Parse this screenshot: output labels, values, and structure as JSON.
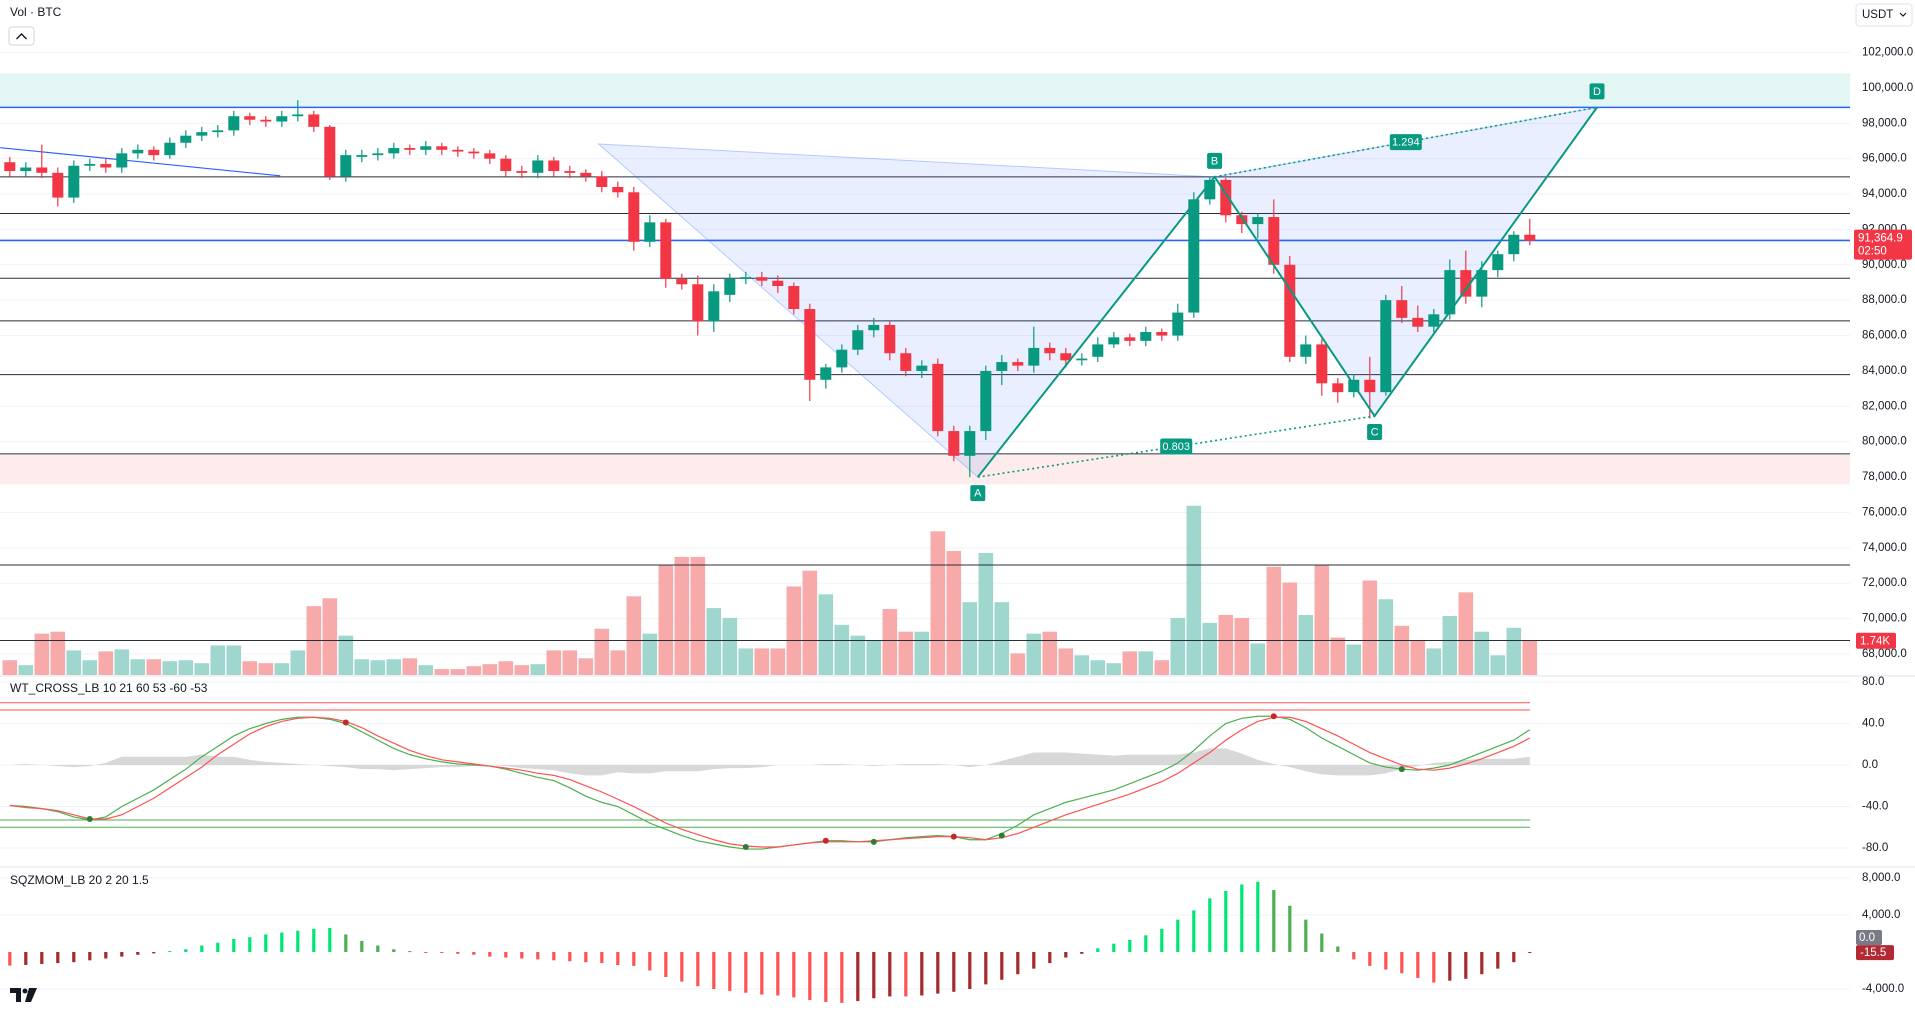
{
  "chart_data": [
    {
      "type": "candlestick",
      "title": "Vol · BTC",
      "currency": "USDT",
      "open": [
        95800,
        95300,
        95500,
        95200,
        93800,
        95600,
        95700,
        95500,
        96300,
        96500,
        96200,
        96900,
        97300,
        97500,
        97600,
        98400,
        98200,
        98100,
        98400,
        98500,
        97800,
        95000,
        96100,
        96200,
        96300,
        96600,
        96500,
        96700,
        96500,
        96400,
        96300,
        96000,
        95300,
        95200,
        95900,
        95300,
        95200,
        95000,
        94400,
        94100,
        91300,
        92400,
        89200,
        88900,
        86800,
        88300,
        89200,
        89300,
        89100,
        88800,
        87500,
        83500,
        84200,
        85200,
        86300,
        86600,
        85000,
        84000,
        84400,
        80600,
        79200,
        80600,
        84000,
        84500,
        84300,
        85300,
        85000,
        84600,
        84800,
        85500,
        85900,
        85700,
        86200,
        86000,
        87300,
        93700,
        94800,
        92800,
        92300,
        92700,
        90000,
        84800,
        85500,
        83300,
        82800,
        83500,
        82800,
        88000,
        87000,
        86500,
        87200,
        89700,
        88200,
        89700,
        90600,
        91700
      ],
      "high": [
        96100,
        95800,
        96800,
        95500,
        95900,
        96000,
        96000,
        96600,
        96800,
        96700,
        97200,
        97600,
        97800,
        97900,
        98700,
        98600,
        98400,
        98700,
        99300,
        98700,
        97900,
        96500,
        96500,
        96600,
        96900,
        96800,
        97000,
        96900,
        96700,
        96600,
        96500,
        96200,
        95600,
        96200,
        96100,
        95600,
        95400,
        95300,
        94700,
        94400,
        92800,
        92600,
        89500,
        89400,
        88900,
        89500,
        89600,
        89600,
        89400,
        89000,
        87800,
        84400,
        85500,
        86600,
        87000,
        86800,
        85300,
        84600,
        84700,
        80900,
        80900,
        84300,
        84900,
        84700,
        86500,
        85600,
        85300,
        85000,
        85900,
        86200,
        86100,
        86500,
        86400,
        87800,
        94100,
        95000,
        94900,
        93000,
        92900,
        93700,
        90500,
        86000,
        85800,
        83600,
        83800,
        84800,
        88300,
        88800,
        87700,
        87500,
        90300,
        90800,
        90200,
        90800,
        91900,
        92600
      ],
      "low": [
        95000,
        95000,
        94900,
        93300,
        93500,
        95300,
        95200,
        95200,
        96000,
        95900,
        96000,
        96600,
        97000,
        97200,
        97300,
        97900,
        97800,
        97800,
        98100,
        97500,
        94800,
        94700,
        95800,
        95900,
        96000,
        96200,
        96200,
        96200,
        96100,
        96000,
        95700,
        95000,
        94900,
        94900,
        95000,
        94900,
        94700,
        94100,
        93800,
        90800,
        91000,
        88700,
        88600,
        86000,
        86200,
        87900,
        88900,
        88800,
        88400,
        87200,
        82300,
        83000,
        83900,
        84900,
        85900,
        84600,
        83700,
        83600,
        80300,
        78900,
        78000,
        80100,
        83200,
        84000,
        83900,
        84600,
        84200,
        84300,
        84500,
        85300,
        85400,
        85400,
        85700,
        85700,
        87000,
        93400,
        92400,
        91800,
        91500,
        89500,
        84500,
        84400,
        82600,
        82200,
        82500,
        81300,
        82600,
        86700,
        86200,
        86200,
        86900,
        87800,
        87600,
        89300,
        90200,
        91100
      ],
      "close": [
        95300,
        95500,
        95200,
        93800,
        95600,
        95700,
        95500,
        96300,
        96500,
        96200,
        96900,
        97300,
        97500,
        97600,
        98400,
        98200,
        98100,
        98400,
        98500,
        97800,
        95000,
        96200,
        96200,
        96300,
        96600,
        96500,
        96700,
        96500,
        96400,
        96300,
        96000,
        95300,
        95200,
        95900,
        95300,
        95200,
        95000,
        94400,
        94100,
        91300,
        92400,
        89200,
        88900,
        86800,
        88500,
        89200,
        89300,
        89100,
        88800,
        87500,
        83500,
        84200,
        85200,
        86300,
        86600,
        85000,
        84000,
        84300,
        80600,
        79200,
        80600,
        84000,
        84500,
        84300,
        85300,
        85000,
        84600,
        84700,
        85500,
        85900,
        85700,
        86200,
        86000,
        87300,
        93700,
        94800,
        92800,
        92300,
        92700,
        90000,
        84800,
        85500,
        83300,
        82800,
        83500,
        82800,
        88000,
        87000,
        86500,
        87200,
        89700,
        88200,
        89700,
        90600,
        91700,
        91364.9
      ],
      "volume": [
        750,
        500,
        2100,
        2200,
        1250,
        750,
        1200,
        1300,
        800,
        800,
        700,
        750,
        600,
        1500,
        1500,
        700,
        600,
        600,
        1250,
        3500,
        3900,
        2000,
        800,
        750,
        800,
        850,
        500,
        300,
        300,
        450,
        550,
        700,
        500,
        550,
        1250,
        1250,
        850,
        2350,
        1250,
        4000,
        2100,
        5600,
        6000,
        6000,
        3400,
        2900,
        1350,
        1350,
        1350,
        4500,
        5300,
        4100,
        2550,
        2000,
        1750,
        3350,
        2200,
        2200,
        7300,
        6300,
        3700,
        6200,
        3700,
        1100,
        2100,
        2200,
        1350,
        1000,
        750,
        600,
        1200,
        1200,
        750,
        2900,
        8600,
        2650,
        3050,
        2900,
        1600,
        5500,
        4700,
        3050,
        5600,
        1900,
        1550,
        4800,
        3850,
        2500,
        1750,
        1350,
        3000,
        4200,
        2200,
        1000,
        2400,
        1740
      ],
      "colors": {
        "up": "#089981",
        "down": "#f23645",
        "volume_up": "#9fd6ce",
        "volume_down": "#f7aaa9"
      },
      "ylim": [
        66810,
        104970
      ],
      "volume_ylim": [
        0,
        34300
      ],
      "grid": true,
      "yticks": [
        {
          "value": 102000,
          "label": "102,000.0"
        },
        {
          "value": 100000,
          "label": "100,000.0"
        },
        {
          "value": 98000,
          "label": "98,000.0"
        },
        {
          "value": 96000,
          "label": "96,000.0"
        },
        {
          "value": 94000,
          "label": "94,000.0"
        },
        {
          "value": 92000,
          "label": "92,000.0"
        },
        {
          "value": 90000,
          "label": "90,000.0"
        },
        {
          "value": 88000,
          "label": "88,000.0"
        },
        {
          "value": 86000,
          "label": "86,000.0"
        },
        {
          "value": 84000,
          "label": "84,000.0"
        },
        {
          "value": 82000,
          "label": "82,000.0"
        },
        {
          "value": 80000,
          "label": "80,000.0"
        },
        {
          "value": 78000,
          "label": "78,000.0"
        },
        {
          "value": 76000,
          "label": "76,000.0"
        },
        {
          "value": 74000,
          "label": "74,000.0"
        },
        {
          "value": 72000,
          "label": "72,000.0"
        },
        {
          "value": 70000,
          "label": "70,000.0"
        },
        {
          "value": 68000,
          "label": "68,000.0"
        }
      ],
      "levels": [
        {
          "value": 98900,
          "color": "#2962ff"
        },
        {
          "value": 94970,
          "color": "#2a2e39"
        },
        {
          "value": 92900,
          "color": "#2a2e39"
        },
        {
          "value": 91380,
          "color": "#2962ff"
        },
        {
          "value": 89240,
          "color": "#2a2e39"
        },
        {
          "value": 86830,
          "color": "#2a2e39"
        },
        {
          "value": 83790,
          "color": "#2a2e39"
        },
        {
          "value": 79310,
          "color": "#2a2e39"
        },
        {
          "value": 73030,
          "color": "#2a2e39"
        },
        {
          "value": 68760,
          "color": "#2a2e39"
        }
      ],
      "zones": [
        {
          "from": 98900,
          "to": 100830,
          "color": "#e4f6f3"
        },
        {
          "from": 77590,
          "to": 79240,
          "color": "#fdeceb"
        }
      ],
      "trendline": {
        "x": [
          -0.6,
          16.9
        ],
        "y": [
          96620,
          95030
        ],
        "color": "#2962ff"
      },
      "pattern": {
        "points": [
          {
            "x": 36.8,
            "y": 96830
          },
          {
            "x": 60.5,
            "y": 78000,
            "label": "A"
          },
          {
            "x": 75.3,
            "y": 94970,
            "label": "B"
          },
          {
            "x": 85.3,
            "y": 81450,
            "label": "C"
          },
          {
            "x": 99.2,
            "y": 98900,
            "label": "D"
          }
        ],
        "ratio_ac": 0.803,
        "ratio_bd": 1.294,
        "color": "#089981",
        "fill": "#2962ff"
      },
      "last_price": {
        "value": 91364.9,
        "label": "91,364.9"
      },
      "countdown": "02:50",
      "last_volume": {
        "value": 1740,
        "label": "1.74K"
      }
    },
    {
      "type": "line",
      "title": "WT_CROSS_LB 10 21 60 53 -60 -53",
      "series": [
        {
          "color": "#4caf50",
          "values": [
            -39,
            -40,
            -42,
            -45,
            -50,
            -53,
            -50,
            -40,
            -32,
            -24,
            -14,
            -4,
            8,
            18,
            28,
            35,
            40,
            44,
            46,
            46,
            44,
            40,
            32,
            24,
            16,
            10,
            6,
            3,
            1,
            0,
            -1,
            -4,
            -8,
            -12,
            -15,
            -22,
            -30,
            -36,
            -40,
            -48,
            -56,
            -62,
            -68,
            -73,
            -76,
            -79,
            -81,
            -81,
            -79,
            -77,
            -75,
            -73,
            -73,
            -74,
            -74,
            -72,
            -70,
            -69,
            -68,
            -69,
            -72,
            -72,
            -66,
            -58,
            -48,
            -42,
            -36,
            -32,
            -28,
            -24,
            -18,
            -12,
            -6,
            2,
            14,
            28,
            40,
            45,
            47,
            47,
            44,
            36,
            26,
            18,
            10,
            2,
            -2,
            -4,
            -5,
            -3,
            0,
            6,
            12,
            18,
            24,
            34
          ]
        },
        {
          "color": "#ff5252",
          "values": [
            -39,
            -41,
            -42,
            -44,
            -48,
            -52,
            -52,
            -48,
            -40,
            -32,
            -22,
            -12,
            -2,
            10,
            20,
            30,
            37,
            42,
            45,
            46,
            45,
            42,
            36,
            28,
            21,
            14,
            9,
            5,
            3,
            1,
            -1,
            -3,
            -5,
            -8,
            -10,
            -14,
            -20,
            -26,
            -33,
            -40,
            -48,
            -56,
            -62,
            -67,
            -72,
            -76,
            -78,
            -79,
            -79,
            -77,
            -75,
            -74,
            -74,
            -74,
            -73,
            -72,
            -71,
            -70,
            -69,
            -69,
            -70,
            -72,
            -70,
            -66,
            -60,
            -54,
            -48,
            -43,
            -38,
            -33,
            -28,
            -22,
            -16,
            -8,
            2,
            12,
            24,
            34,
            42,
            46,
            46,
            42,
            35,
            28,
            20,
            12,
            6,
            0,
            -4,
            -5,
            -3,
            1,
            6,
            12,
            18,
            26
          ]
        }
      ],
      "area": {
        "color": "#c8c8c8",
        "values": [
          0,
          1,
          0,
          -1,
          -2,
          -1,
          2,
          8,
          8,
          8,
          8,
          8,
          10,
          8,
          8,
          5,
          3,
          2,
          1,
          0,
          -1,
          -2,
          -4,
          -4,
          -5,
          -4,
          -3,
          -2,
          -2,
          -1,
          0,
          -1,
          -3,
          -4,
          -5,
          -8,
          -10,
          -10,
          -7,
          -8,
          -8,
          -6,
          -6,
          -6,
          -4,
          -3,
          -3,
          -2,
          0,
          0,
          0,
          1,
          1,
          0,
          -1,
          0,
          1,
          1,
          1,
          0,
          -2,
          0,
          4,
          8,
          12,
          12,
          12,
          11,
          10,
          9,
          10,
          10,
          10,
          10,
          12,
          16,
          16,
          11,
          5,
          1,
          -2,
          -6,
          -9,
          -10,
          -10,
          -10,
          -8,
          -4,
          -1,
          2,
          3,
          5,
          6,
          6,
          6,
          8
        ]
      },
      "levels": [
        {
          "value": 60,
          "color": "#ff5252"
        },
        {
          "value": 53,
          "color": "#ff5252"
        },
        {
          "value": -53,
          "color": "#4caf50"
        },
        {
          "value": -60,
          "color": "#4caf50"
        }
      ],
      "signals": [
        {
          "x": 5,
          "value": -52,
          "color": "#2e7d32"
        },
        {
          "x": 21,
          "value": 41,
          "color": "#c62828"
        },
        {
          "x": 46,
          "value": -79,
          "color": "#2e7d32"
        },
        {
          "x": 51,
          "value": -73,
          "color": "#c62828"
        },
        {
          "x": 54,
          "value": -74,
          "color": "#2e7d32"
        },
        {
          "x": 59,
          "value": -69,
          "color": "#c62828"
        },
        {
          "x": 62,
          "value": -68,
          "color": "#2e7d32"
        },
        {
          "x": 79,
          "value": 47,
          "color": "#c62828"
        },
        {
          "x": 87,
          "value": -4,
          "color": "#2e7d32"
        }
      ],
      "ylim": [
        -97.3,
        84.8
      ],
      "grid": true,
      "yticks": [
        {
          "value": 80,
          "label": "80.0"
        },
        {
          "value": 40,
          "label": "40.0"
        },
        {
          "value": 0,
          "label": "0.0"
        },
        {
          "value": -40,
          "label": "-40.0"
        },
        {
          "value": -80,
          "label": "-80.0"
        }
      ]
    },
    {
      "type": "bar",
      "title": "SQZMOM_LB 20 2 20 1.5",
      "values": [
        -1470,
        -1400,
        -1300,
        -1200,
        -1100,
        -900,
        -700,
        -500,
        -300,
        -150,
        100,
        300,
        700,
        1000,
        1400,
        1600,
        1900,
        2100,
        2300,
        2500,
        2600,
        1900,
        1200,
        700,
        300,
        100,
        -50,
        -100,
        -200,
        -300,
        -500,
        -600,
        -700,
        -800,
        -900,
        -1000,
        -1100,
        -1200,
        -1400,
        -1500,
        -2000,
        -2700,
        -3200,
        -3700,
        -4000,
        -4200,
        -4400,
        -4600,
        -4700,
        -4900,
        -5200,
        -5400,
        -5500,
        -5300,
        -5000,
        -4800,
        -4800,
        -4700,
        -4500,
        -4300,
        -4000,
        -3500,
        -3000,
        -2400,
        -1800,
        -1200,
        -600,
        -200,
        400,
        900,
        1300,
        1800,
        2500,
        3500,
        4500,
        5800,
        6600,
        7300,
        7600,
        6700,
        5000,
        3500,
        2000,
        600,
        -800,
        -1500,
        -1900,
        -2300,
        -2800,
        -3300,
        -3100,
        -2900,
        -2400,
        -1800,
        -1100,
        -15.5
      ],
      "colors": {
        "pos_rising": "#00e676",
        "pos_falling": "#4caf50",
        "neg_falling": "#ff5252",
        "neg_rising": "#a52a2a"
      },
      "squeeze_value": {
        "value": 0,
        "label": "0.0"
      },
      "ylim": [
        -6270,
        9080
      ],
      "grid": true,
      "yticks": [
        {
          "value": 8000,
          "label": "8,000.0"
        },
        {
          "value": 4000,
          "label": "4,000.0"
        },
        {
          "value": -4000,
          "label": "-4,000.0"
        }
      ]
    }
  ]
}
